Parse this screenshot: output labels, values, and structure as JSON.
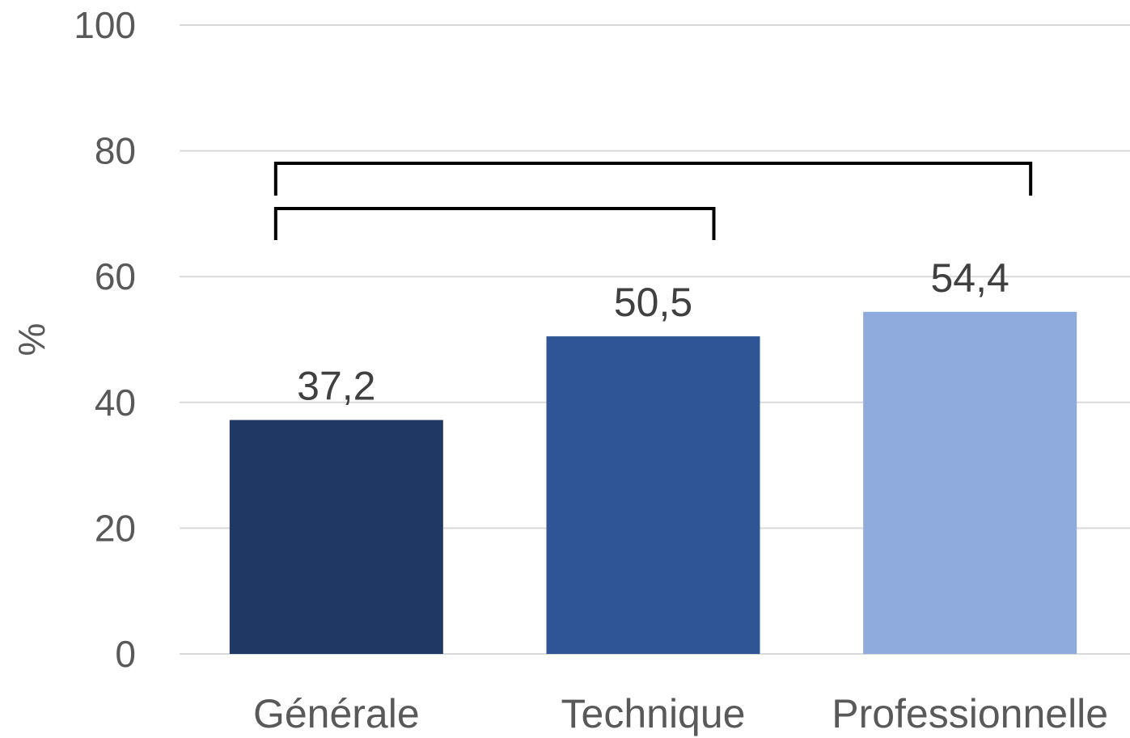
{
  "chart_data": {
    "type": "bar",
    "categories": [
      "Générale",
      "Technique",
      "Professionnelle"
    ],
    "values": [
      37.2,
      50.5,
      54.4
    ],
    "value_labels": [
      "37,2",
      "50,5",
      "54,4"
    ],
    "colors": [
      "#203864",
      "#2F5597",
      "#8FAADC"
    ],
    "title": "",
    "xlabel": "",
    "ylabel": "%",
    "ylim": [
      0,
      100
    ],
    "yticks": [
      0,
      20,
      40,
      60,
      80,
      100
    ],
    "grid": true,
    "legend": "none",
    "comparisons": [
      {
        "from": "Générale",
        "to": "Professionnelle"
      },
      {
        "from": "Générale",
        "to": "Technique"
      }
    ]
  }
}
